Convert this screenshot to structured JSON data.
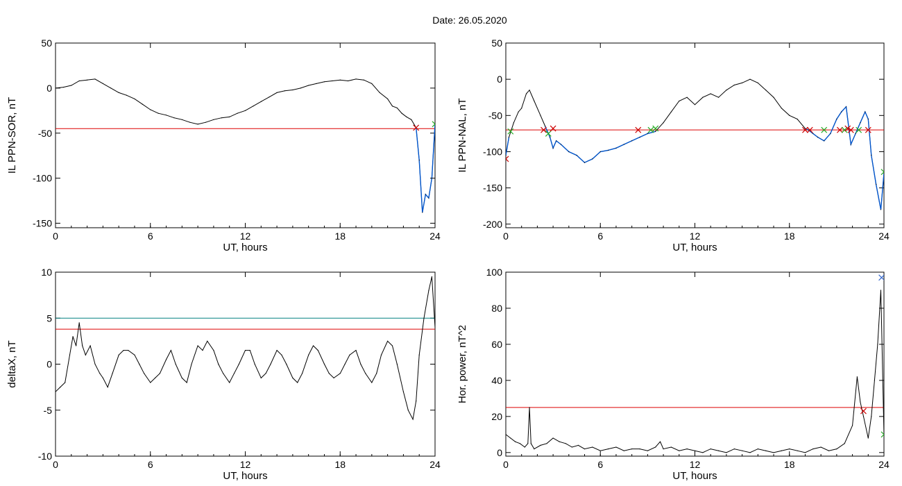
{
  "header": {
    "date_text": "Date:  26.05.2020"
  },
  "colors": {
    "trace": "#000000",
    "threshold": "#dd0000",
    "threshold_alt": "#008080",
    "highlight": "#0055cc",
    "marker_red": "#cc0000",
    "marker_green": "#22aa22",
    "marker_blue": "#3366cc"
  },
  "chart_data": [
    {
      "id": "sor",
      "type": "line",
      "xlabel": "UT, hours",
      "ylabel": "IL PPN-SOR, nT",
      "xlim": [
        0,
        24
      ],
      "ylim": [
        -155,
        50
      ],
      "xticks": [
        0,
        6,
        12,
        18,
        24
      ],
      "yticks": [
        50,
        0,
        -50,
        -100,
        -150
      ],
      "series": [
        {
          "x": [
            0,
            0.5,
            1,
            1.5,
            2,
            2.5,
            3,
            3.5,
            4,
            4.5,
            5,
            5.5,
            6,
            6.5,
            7,
            7.5,
            8,
            8.5,
            9,
            9.5,
            10,
            10.5,
            11,
            11.5,
            12,
            12.5,
            13,
            13.5,
            14,
            14.5,
            15,
            15.5,
            16,
            16.5,
            17,
            17.5,
            18,
            18.5,
            19,
            19.5,
            20,
            20.5,
            21,
            21.3,
            21.6,
            21.9,
            22.2,
            22.5,
            22.8,
            23,
            23.2,
            23.4,
            23.6,
            23.8,
            24
          ],
          "y": [
            0,
            1,
            3,
            8,
            9,
            10,
            5,
            0,
            -5,
            -8,
            -12,
            -18,
            -24,
            -28,
            -30,
            -33,
            -35,
            -38,
            -40,
            -38,
            -35,
            -33,
            -32,
            -28,
            -25,
            -20,
            -15,
            -10,
            -5,
            -3,
            -2,
            0,
            3,
            5,
            7,
            8,
            9,
            8,
            10,
            9,
            5,
            -5,
            -12,
            -20,
            -22,
            -28,
            -32,
            -35,
            -44,
            -80,
            -138,
            -118,
            -122,
            -100,
            -40
          ]
        }
      ],
      "thresholds": [
        {
          "y": -45,
          "color": "#dd0000"
        }
      ],
      "highlight_from_x": 22.8,
      "markers": [
        {
          "x": 22.8,
          "y": -44,
          "color": "#cc0000"
        },
        {
          "x": 24,
          "y": -40,
          "color": "#22aa22"
        }
      ]
    },
    {
      "id": "nal",
      "type": "line",
      "xlabel": "UT, hours",
      "ylabel": "IL PPN-NAL, nT",
      "xlim": [
        0,
        24
      ],
      "ylim": [
        -205,
        50
      ],
      "xticks": [
        0,
        6,
        12,
        18,
        24
      ],
      "yticks": [
        50,
        0,
        -50,
        -100,
        -150,
        -200
      ],
      "series": [
        {
          "x": [
            0,
            0.2,
            0.5,
            0.8,
            1.0,
            1.3,
            1.5,
            1.8,
            2.2,
            2.5,
            2.8,
            3.0,
            3.2,
            3.5,
            4,
            4.5,
            5,
            5.5,
            6,
            6.5,
            7,
            7.5,
            8,
            8.5,
            9,
            9.5,
            10,
            10.5,
            11,
            11.5,
            12,
            12.5,
            13,
            13.5,
            14,
            14.5,
            15,
            15.5,
            16,
            16.5,
            17,
            17.5,
            18,
            18.5,
            19,
            19.2,
            19.5,
            19.8,
            20.2,
            20.6,
            21.0,
            21.3,
            21.6,
            21.9,
            22.2,
            22.5,
            22.8,
            23.0,
            23.2,
            23.5,
            23.8,
            24
          ],
          "y": [
            -105,
            -80,
            -60,
            -45,
            -40,
            -20,
            -15,
            -30,
            -50,
            -65,
            -80,
            -95,
            -85,
            -90,
            -100,
            -105,
            -115,
            -110,
            -100,
            -98,
            -95,
            -90,
            -85,
            -80,
            -75,
            -72,
            -60,
            -45,
            -30,
            -25,
            -35,
            -25,
            -20,
            -25,
            -15,
            -8,
            -5,
            0,
            -5,
            -15,
            -25,
            -40,
            -50,
            -55,
            -68,
            -70,
            -75,
            -80,
            -85,
            -75,
            -55,
            -45,
            -38,
            -90,
            -75,
            -60,
            -45,
            -55,
            -105,
            -145,
            -180,
            -130
          ]
        }
      ],
      "thresholds": [
        {
          "y": -70,
          "color": "#dd0000"
        }
      ],
      "highlight_ranges": [
        [
          0,
          0.3
        ],
        [
          2.3,
          9.8
        ],
        [
          18.9,
          24
        ]
      ],
      "markers": [
        {
          "x": 0,
          "y": -110,
          "color": "#cc0000"
        },
        {
          "x": 0.3,
          "y": -72,
          "color": "#22aa22"
        },
        {
          "x": 2.4,
          "y": -70,
          "color": "#cc0000"
        },
        {
          "x": 2.7,
          "y": -75,
          "color": "#22aa22"
        },
        {
          "x": 3.0,
          "y": -68,
          "color": "#cc0000"
        },
        {
          "x": 8.4,
          "y": -70,
          "color": "#cc0000"
        },
        {
          "x": 9.2,
          "y": -70,
          "color": "#22aa22"
        },
        {
          "x": 9.5,
          "y": -68,
          "color": "#22aa22"
        },
        {
          "x": 19.0,
          "y": -70,
          "color": "#cc0000"
        },
        {
          "x": 19.3,
          "y": -70,
          "color": "#cc0000"
        },
        {
          "x": 20.2,
          "y": -70,
          "color": "#22aa22"
        },
        {
          "x": 21.2,
          "y": -70,
          "color": "#cc0000"
        },
        {
          "x": 21.5,
          "y": -70,
          "color": "#22aa22"
        },
        {
          "x": 21.7,
          "y": -68,
          "color": "#cc0000"
        },
        {
          "x": 21.9,
          "y": -70,
          "color": "#cc0000"
        },
        {
          "x": 22.4,
          "y": -70,
          "color": "#22aa22"
        },
        {
          "x": 23.0,
          "y": -70,
          "color": "#cc0000"
        },
        {
          "x": 24,
          "y": -128,
          "color": "#22aa22"
        }
      ]
    },
    {
      "id": "deltax",
      "type": "line",
      "xlabel": "UT, hours",
      "ylabel": "deltaX, nT",
      "xlim": [
        0,
        24
      ],
      "ylim": [
        -10,
        10
      ],
      "xticks": [
        0,
        6,
        12,
        18,
        24
      ],
      "yticks": [
        10,
        5,
        0,
        -5,
        -10
      ],
      "series": [
        {
          "x": [
            0,
            0.3,
            0.6,
            0.9,
            1.1,
            1.3,
            1.5,
            1.7,
            1.9,
            2.2,
            2.5,
            2.8,
            3.0,
            3.3,
            3.6,
            4.0,
            4.3,
            4.6,
            5.0,
            5.3,
            5.6,
            6.0,
            6.3,
            6.6,
            7.0,
            7.3,
            7.6,
            8.0,
            8.3,
            8.6,
            9.0,
            9.3,
            9.6,
            10.0,
            10.3,
            10.6,
            11.0,
            11.3,
            11.6,
            12.0,
            12.3,
            12.6,
            13.0,
            13.3,
            13.6,
            14.0,
            14.3,
            14.6,
            15.0,
            15.3,
            15.6,
            16.0,
            16.3,
            16.6,
            17.0,
            17.3,
            17.6,
            18.0,
            18.3,
            18.6,
            19.0,
            19.3,
            19.6,
            20.0,
            20.3,
            20.6,
            21.0,
            21.3,
            21.6,
            22.0,
            22.3,
            22.6,
            22.8,
            23.0,
            23.3,
            23.6,
            23.8,
            24
          ],
          "y": [
            -3,
            -2.5,
            -2,
            1,
            3,
            2,
            4.5,
            2,
            1,
            2,
            0,
            -1,
            -1.5,
            -2.5,
            -1,
            1,
            1.5,
            1.5,
            1,
            0,
            -1,
            -2,
            -1.5,
            -1,
            0.5,
            1.5,
            0,
            -1.5,
            -2,
            0,
            2,
            1.5,
            2.5,
            1.5,
            0,
            -1,
            -2,
            -1,
            0,
            1.5,
            1.5,
            0,
            -1.5,
            -1,
            0,
            1.5,
            1,
            0,
            -1.5,
            -2,
            -1,
            1,
            2,
            1.5,
            0,
            -1,
            -1.5,
            -1,
            0,
            1,
            1.5,
            0,
            -1,
            -2,
            -1,
            1,
            2.5,
            2,
            0,
            -3,
            -5,
            -6,
            -4,
            1,
            5,
            8,
            9.5,
            4
          ]
        }
      ],
      "thresholds": [
        {
          "y": 5,
          "color": "#008080"
        },
        {
          "y": 3.8,
          "color": "#dd0000"
        }
      ],
      "markers": []
    },
    {
      "id": "horpower",
      "type": "line",
      "xlabel": "UT, hours",
      "ylabel": "Hor. power, nT^2",
      "xlim": [
        0,
        24
      ],
      "ylim": [
        -2,
        100
      ],
      "xticks": [
        0,
        6,
        12,
        18,
        24
      ],
      "yticks": [
        100,
        80,
        60,
        40,
        20,
        0
      ],
      "series": [
        {
          "x": [
            0,
            0.3,
            0.6,
            0.9,
            1.2,
            1.4,
            1.5,
            1.6,
            1.8,
            2.2,
            2.6,
            3.0,
            3.4,
            3.8,
            4.2,
            4.6,
            5.0,
            5.5,
            6.0,
            6.5,
            7.0,
            7.5,
            8.0,
            8.5,
            9.0,
            9.5,
            9.8,
            10.0,
            10.5,
            11.0,
            11.5,
            12.0,
            12.5,
            13.0,
            13.5,
            14.0,
            14.5,
            15.0,
            15.5,
            16.0,
            16.5,
            17.0,
            17.5,
            18.0,
            18.5,
            19.0,
            19.5,
            20.0,
            20.5,
            21.0,
            21.5,
            22.0,
            22.3,
            22.5,
            22.7,
            23.0,
            23.2,
            23.4,
            23.6,
            23.8,
            24
          ],
          "y": [
            10,
            8,
            6,
            5,
            3,
            5,
            25,
            5,
            2,
            4,
            5,
            8,
            6,
            5,
            3,
            4,
            2,
            3,
            1,
            2,
            3,
            1,
            2,
            2,
            1,
            3,
            6,
            2,
            3,
            1,
            2,
            1,
            0,
            2,
            1,
            0,
            2,
            1,
            0,
            2,
            1,
            0,
            1,
            2,
            1,
            0,
            2,
            3,
            1,
            2,
            5,
            15,
            42,
            28,
            20,
            8,
            20,
            40,
            60,
            90,
            10
          ]
        }
      ],
      "thresholds": [
        {
          "y": 25,
          "color": "#dd0000"
        }
      ],
      "markers": [
        {
          "x": 22.7,
          "y": 23,
          "color": "#cc0000"
        },
        {
          "x": 23.85,
          "y": 97,
          "color": "#3366cc"
        },
        {
          "x": 24,
          "y": 10,
          "color": "#22aa22"
        }
      ]
    }
  ]
}
